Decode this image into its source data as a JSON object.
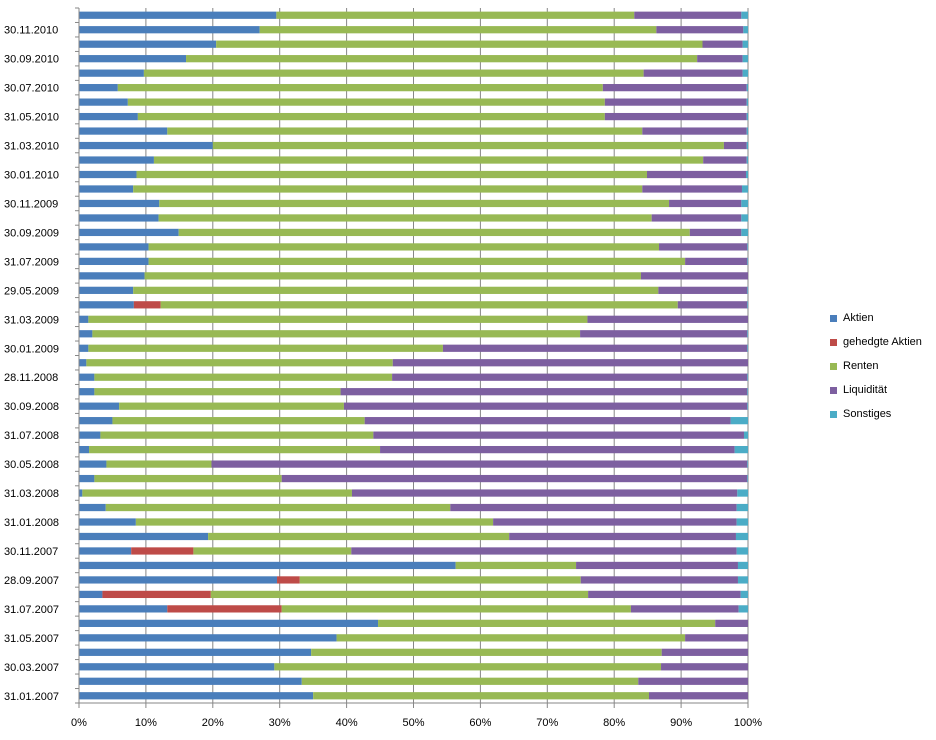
{
  "chart_data": {
    "type": "bar",
    "orientation": "horizontal",
    "stacked": "percent",
    "title": "",
    "xlabel": "",
    "ylabel": "",
    "xlim": [
      0,
      100
    ],
    "x_ticks": [
      "0%",
      "10%",
      "20%",
      "30%",
      "40%",
      "50%",
      "60%",
      "70%",
      "80%",
      "90%",
      "100%"
    ],
    "grid": "vertical",
    "legend_position": "right",
    "categories": [
      "",
      "30.11.2010",
      "",
      "30.09.2010",
      "",
      "30.07.2010",
      "",
      "31.05.2010",
      "",
      "31.03.2010",
      "",
      "30.01.2010",
      "",
      "30.11.2009",
      "",
      "30.09.2009",
      "",
      "31.07.2009",
      "",
      "29.05.2009",
      "",
      "31.03.2009",
      "",
      "30.01.2009",
      "",
      "28.11.2008",
      "",
      "30.09.2008",
      "",
      "31.07.2008",
      "",
      "30.05.2008",
      "",
      "31.03.2008",
      "",
      "31.01.2008",
      "",
      "30.11.2007",
      "",
      "28.09.2007",
      "",
      "31.07.2007",
      "",
      "31.05.2007",
      "",
      "30.03.2007",
      "",
      "31.01.2007"
    ],
    "series": [
      {
        "name": "Aktien",
        "color": "#4a7ebb",
        "values": [
          29.5,
          27,
          20.5,
          16,
          9.7,
          5.8,
          7.3,
          8.8,
          13.2,
          20,
          11.2,
          8.6,
          8.1,
          12,
          11.9,
          14.9,
          10.4,
          10.4,
          9.8,
          8.1,
          8.2,
          1.4,
          2,
          1.4,
          1.1,
          2.3,
          2.3,
          6,
          5,
          3.2,
          1.5,
          4.1,
          2.3,
          0.5,
          4,
          8.5,
          19.3,
          7.8,
          56.3,
          29.6,
          3.5,
          13.2,
          44.7,
          38.5,
          34.7,
          29.2,
          33.3,
          35
        ]
      },
      {
        "name": "gehedgte Aktien",
        "color": "#be4b48",
        "values": [
          0,
          0,
          0,
          0,
          0,
          0,
          0,
          0,
          0,
          0,
          0,
          0,
          0,
          0,
          0,
          0,
          0,
          0,
          0,
          0,
          4,
          0,
          0,
          0,
          0,
          0,
          0,
          0,
          0,
          0,
          0,
          0,
          0,
          0,
          0,
          0,
          0,
          9.3,
          0,
          3.4,
          16.2,
          17.1,
          0,
          0,
          0,
          0,
          0,
          0
        ]
      },
      {
        "name": "Renten",
        "color": "#98b954",
        "values": [
          53.5,
          59.3,
          72.7,
          76.4,
          74.7,
          72.5,
          71.3,
          69.8,
          71,
          76.4,
          82.1,
          76.3,
          76.1,
          76.2,
          73.7,
          76.4,
          76.3,
          80.2,
          74.2,
          78.5,
          77.3,
          74.6,
          72.9,
          53,
          45.8,
          44.5,
          36.8,
          33.6,
          37.7,
          40.8,
          43.5,
          15.7,
          28,
          40.3,
          51.5,
          53.4,
          45,
          23.6,
          18,
          42,
          56.4,
          52.2,
          50.4,
          52.1,
          52.4,
          57.8,
          50.3,
          50.2
        ]
      },
      {
        "name": "Liquidität",
        "color": "#7d5fa0",
        "values": [
          16,
          13,
          6,
          6.8,
          14.8,
          21.5,
          21.2,
          21.2,
          15.6,
          3.4,
          6.5,
          14.8,
          14.9,
          10.8,
          13.4,
          7.7,
          13.2,
          9.3,
          16,
          13.3,
          10.4,
          24,
          25,
          45.5,
          53.1,
          53.1,
          60.8,
          60.3,
          54.7,
          55.4,
          53,
          80.1,
          69.6,
          57.6,
          42.8,
          36.4,
          33.9,
          57.6,
          24.2,
          23.5,
          22.8,
          16.1,
          4.9,
          9.4,
          12.9,
          13,
          16.4,
          14.8
        ]
      },
      {
        "name": "Sonstiges",
        "color": "#4bacc6",
        "values": [
          1,
          0.7,
          0.8,
          0.8,
          0.8,
          0.2,
          0.2,
          0.2,
          0.2,
          0.2,
          0.2,
          0.3,
          0.9,
          1,
          1,
          1,
          0.1,
          0.1,
          0,
          0.1,
          0.1,
          0,
          0.1,
          0.1,
          0,
          0.1,
          0.1,
          0.1,
          2.6,
          0.6,
          2,
          0.1,
          0.1,
          1.6,
          1.7,
          1.7,
          1.8,
          1.7,
          1.5,
          1.5,
          1.1,
          1.4,
          0,
          0,
          0,
          0,
          0,
          0
        ]
      }
    ]
  }
}
